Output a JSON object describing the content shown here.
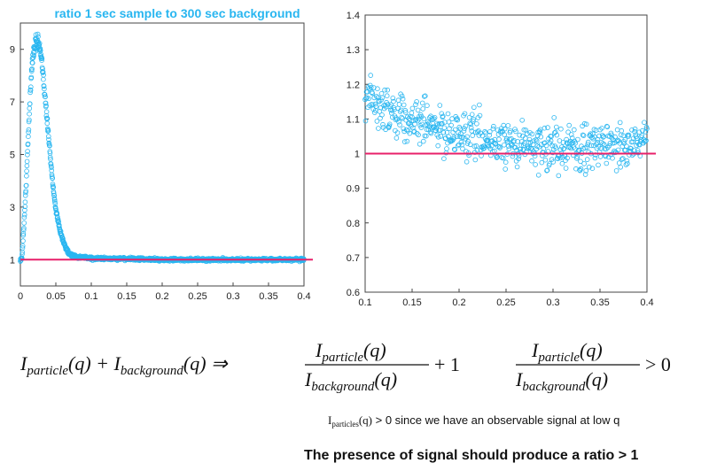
{
  "chart_data": [
    {
      "type": "scatter",
      "title": "ratio 1 sec sample to 300 sec background",
      "xlim": [
        0,
        0.4
      ],
      "ylim": [
        0,
        10
      ],
      "x_ticks": [
        "0",
        "0.05",
        "0.1",
        "0.15",
        "0.2",
        "0.25",
        "0.3",
        "0.35",
        "0.4"
      ],
      "y_ticks": [
        "1",
        "3",
        "5",
        "7",
        "9"
      ],
      "x_tick_values": [
        0,
        0.05,
        0.1,
        0.15,
        0.2,
        0.25,
        0.3,
        0.35,
        0.4
      ],
      "y_tick_values": [
        1,
        3,
        5,
        7,
        9
      ],
      "reference_line": 1,
      "grid": false,
      "series": [
        {
          "marker": "open-circle",
          "x": [
            0.002,
            0.005,
            0.008,
            0.011,
            0.014,
            0.016,
            0.018,
            0.02,
            0.022,
            0.024,
            0.026,
            0.028,
            0.03,
            0.032,
            0.035,
            0.038,
            0.042,
            0.046,
            0.05,
            0.055,
            0.06,
            0.065,
            0.07,
            0.075,
            0.08,
            0.09,
            0.1,
            0.12,
            0.15,
            0.2,
            0.25,
            0.3,
            0.35,
            0.4
          ],
          "y": [
            1.0,
            2.3,
            3.8,
            5.6,
            7.4,
            8.2,
            8.8,
            9.1,
            9.3,
            9.4,
            9.2,
            8.9,
            8.5,
            8.0,
            7.2,
            6.2,
            5.0,
            3.8,
            2.9,
            2.2,
            1.7,
            1.4,
            1.2,
            1.15,
            1.1,
            1.08,
            1.05,
            1.04,
            1.03,
            1.0,
            1.0,
            1.0,
            1.0,
            1.0
          ]
        }
      ]
    },
    {
      "type": "scatter",
      "xlim": [
        0.1,
        0.4
      ],
      "ylim": [
        0.6,
        1.4
      ],
      "x_ticks": [
        "0.1",
        "0.15",
        "0.2",
        "0.25",
        "0.3",
        "0.35",
        "0.4"
      ],
      "y_ticks": [
        "0.6",
        "0.7",
        "0.8",
        "0.9",
        "1",
        "1.1",
        "1.2",
        "1.3",
        "1.4"
      ],
      "x_tick_values": [
        0.1,
        0.15,
        0.2,
        0.25,
        0.3,
        0.35,
        0.4
      ],
      "y_tick_values": [
        0.6,
        0.7,
        0.8,
        0.9,
        1.0,
        1.1,
        1.2,
        1.3,
        1.4
      ],
      "reference_line": 1,
      "grid": false,
      "series": [
        {
          "marker": "open-circle",
          "x": [
            0.1,
            0.12,
            0.14,
            0.16,
            0.18,
            0.2,
            0.22,
            0.24,
            0.26,
            0.28,
            0.3,
            0.32,
            0.34,
            0.36,
            0.38,
            0.4
          ],
          "y": [
            1.17,
            1.13,
            1.11,
            1.09,
            1.07,
            1.05,
            1.04,
            1.03,
            1.03,
            1.02,
            1.02,
            1.02,
            1.02,
            1.03,
            1.03,
            1.03
          ]
        }
      ]
    }
  ],
  "colors": {
    "points": "#29b6f0",
    "reference_line": "#e8206a",
    "title": "#29b6f0"
  },
  "equations": {
    "sum_left": "particle",
    "sum_right": "background",
    "ratio_num": "particle",
    "ratio_den": "background",
    "ratio_plus": "+ 1",
    "compare": "> 0"
  },
  "note": {
    "prefix": "I",
    "subscript": "particles",
    "arg": "(q)",
    "text": " > 0 since we have an observable signal at low q"
  },
  "conclusion": "The presence of signal should produce a ratio > 1"
}
